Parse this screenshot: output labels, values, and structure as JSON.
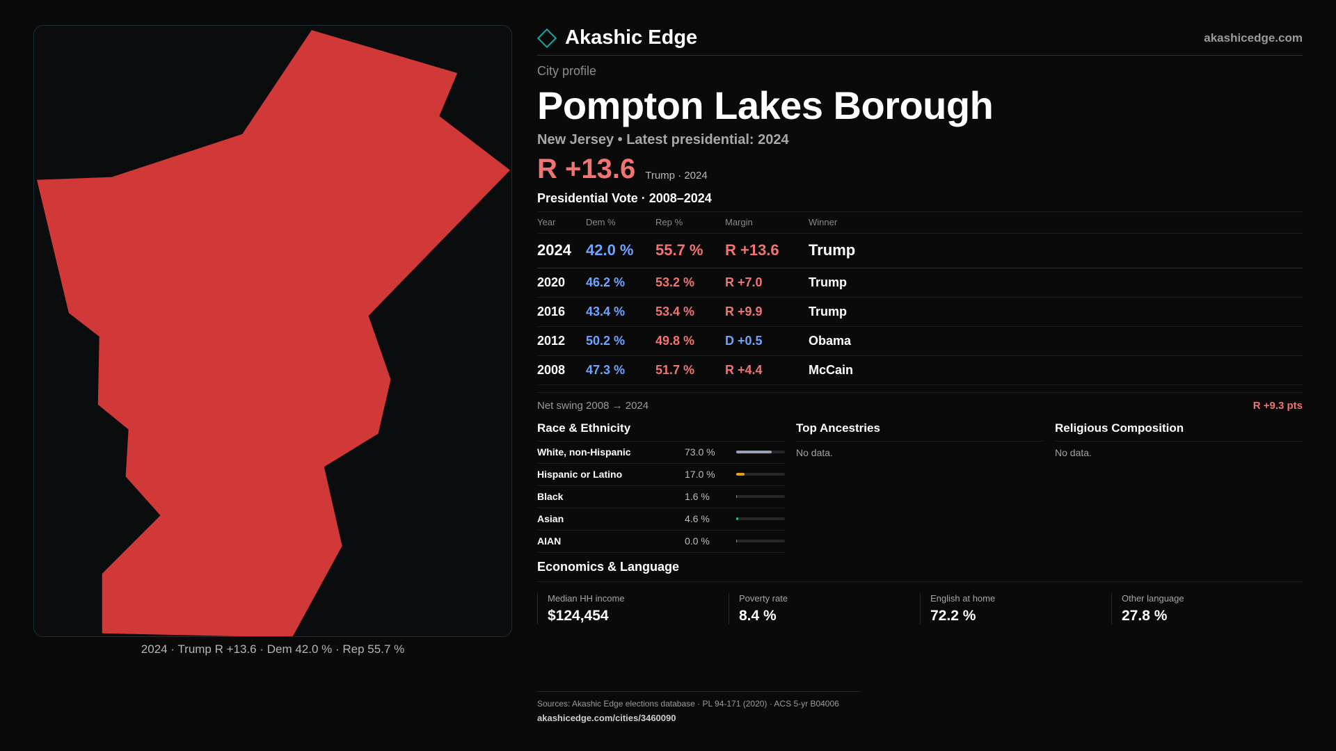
{
  "brand": {
    "name": "Akashic Edge",
    "site": "akashicedge.com"
  },
  "profile": {
    "label": "City profile",
    "city": "Pompton Lakes Borough",
    "state_line": "New Jersey • Latest presidential: 2024",
    "headline_margin": "R +13.6",
    "headline_note": "Trump · 2024"
  },
  "map": {
    "caption": "2024 · Trump R +13.6 · Dem 42.0 % · Rep 55.7 %",
    "fill_color": "#d13838"
  },
  "votes": {
    "title": "Presidential Vote · 2008–2024",
    "headers": {
      "year": "Year",
      "dem": "Dem %",
      "rep": "Rep %",
      "margin": "Margin",
      "winner": "Winner"
    },
    "rows": [
      {
        "year": "2024",
        "dem": "42.0 %",
        "rep": "55.7 %",
        "margin": "R +13.6",
        "party": "R",
        "winner": "Trump"
      },
      {
        "year": "2020",
        "dem": "46.2 %",
        "rep": "53.2 %",
        "margin": "R +7.0",
        "party": "R",
        "winner": "Trump"
      },
      {
        "year": "2016",
        "dem": "43.4 %",
        "rep": "53.4 %",
        "margin": "R +9.9",
        "party": "R",
        "winner": "Trump"
      },
      {
        "year": "2012",
        "dem": "50.2 %",
        "rep": "49.8 %",
        "margin": "D +0.5",
        "party": "D",
        "winner": "Obama"
      },
      {
        "year": "2008",
        "dem": "47.3 %",
        "rep": "51.7 %",
        "margin": "R +4.4",
        "party": "R",
        "winner": "McCain"
      }
    ],
    "swing_label": "Net swing 2008 → 2024",
    "swing_value": "R +9.3 pts"
  },
  "race": {
    "title": "Race & Ethnicity",
    "rows": [
      {
        "label": "White, non-Hispanic",
        "value": "73.0 %",
        "pct": 73.0,
        "color": "#9aa3b5"
      },
      {
        "label": "Hispanic or Latino",
        "value": "17.0 %",
        "pct": 17.0,
        "color": "#e0a21a"
      },
      {
        "label": "Black",
        "value": "1.6 %",
        "pct": 1.6,
        "color": "#8f8f8f"
      },
      {
        "label": "Asian",
        "value": "4.6 %",
        "pct": 4.6,
        "color": "#22c07a"
      },
      {
        "label": "AIAN",
        "value": "0.0 %",
        "pct": 0.0,
        "color": "#8f8f8f"
      }
    ]
  },
  "ancestries": {
    "title": "Top Ancestries",
    "empty": "No data."
  },
  "religion": {
    "title": "Religious Composition",
    "empty": "No data."
  },
  "economics": {
    "title": "Economics & Language",
    "cells": [
      {
        "label": "Median HH income",
        "value": "$124,454"
      },
      {
        "label": "Poverty rate",
        "value": "8.4 %"
      },
      {
        "label": "English at home",
        "value": "72.2 %"
      },
      {
        "label": "Other language",
        "value": "27.8 %"
      }
    ]
  },
  "footer": {
    "sources": "Sources: Akashic Edge elections database · PL 94-171 (2020) · ACS 5-yr B04006",
    "url": "akashicedge.com/cities/3460090"
  }
}
